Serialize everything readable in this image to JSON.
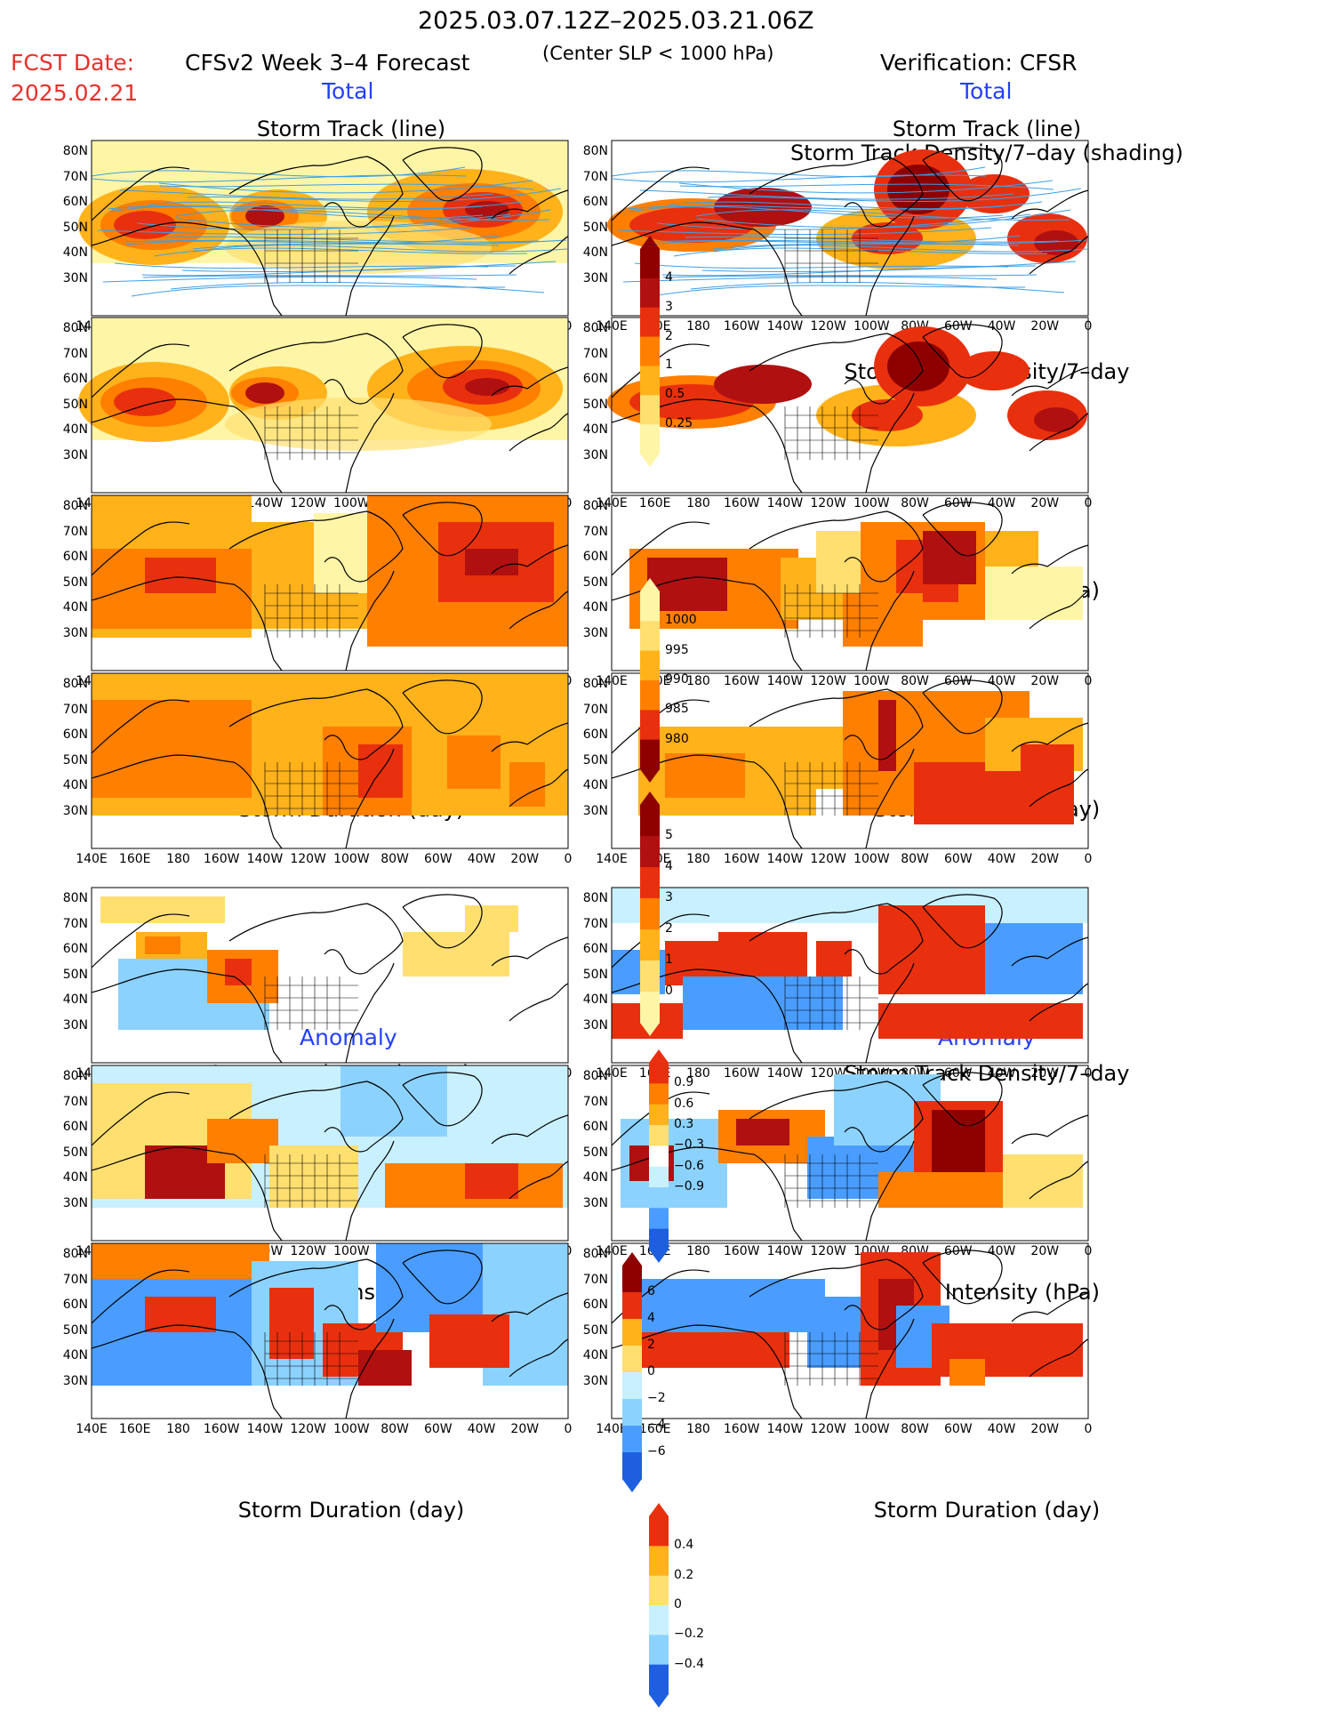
{
  "header": {
    "date_range": "2025.03.07.12Z–2025.03.21.06Z",
    "fcst_label": "FCST Date:",
    "fcst_date": "2025.02.21",
    "forecast_title": "CFSv2 Week 3–4 Forecast",
    "center_slp": "(Center SLP < 1000 hPa)",
    "verification": "Verification: CFSR"
  },
  "sections": {
    "total_left": "Total",
    "total_right": "Total",
    "anomaly_left": "Anomaly",
    "anomaly_right": "Anomaly"
  },
  "panel_titles": {
    "track_line": "Storm Track (line)",
    "track_density_shading": "Storm Track Density/7–day (shading)",
    "track_density": "Storm Track Density/7–day",
    "intensity": "Storm Intensity (hPa)",
    "duration": "Storm Duration (day)"
  },
  "lat_labels": [
    "80N",
    "70N",
    "60N",
    "50N",
    "40N",
    "30N"
  ],
  "lon_labels": [
    "140E",
    "160E",
    "180",
    "160W",
    "140W",
    "120W",
    "100W",
    "80W",
    "60W",
    "40W",
    "20W",
    "0"
  ],
  "colorbars": {
    "density": [
      "4",
      "3",
      "2",
      "1",
      "0.5",
      "0.25"
    ],
    "intensity": [
      "1000",
      "995",
      "990",
      "985",
      "980"
    ],
    "duration": [
      "5",
      "4",
      "3",
      "2",
      "1",
      "0"
    ],
    "density_anom": [
      "0.9",
      "0.6",
      "0.3",
      "−0.3",
      "−0.6",
      "−0.9"
    ],
    "intensity_anom": [
      "6",
      "4",
      "2",
      "0",
      "−2",
      "−4",
      "−6"
    ],
    "duration_anom": [
      "0.4",
      "0.2",
      "0",
      "−0.2",
      "−0.4"
    ]
  },
  "colors": {
    "warm": [
      "#fff5a6",
      "#ffdf70",
      "#ffb21a",
      "#ff7f00",
      "#e8300e",
      "#b01010",
      "#8e0000"
    ],
    "cool": [
      "#c8f0ff",
      "#8cd2ff",
      "#4a9dff",
      "#1e5fe0"
    ],
    "track_line": "#3aa0e8",
    "title_red": "#e8312a",
    "title_blue": "#2440ff"
  }
}
